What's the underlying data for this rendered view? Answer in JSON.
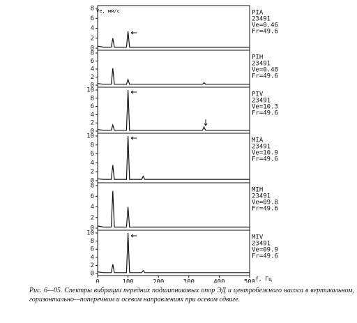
{
  "chart_data": [
    {
      "type": "line",
      "annotations": [
        "PIA",
        "23491",
        "Ve=0.46",
        "Fr=49.6"
      ],
      "ylabel": "Ve, мм/с",
      "x": [
        0,
        20,
        45,
        50,
        55,
        95,
        100,
        105,
        200,
        300,
        400,
        500
      ],
      "values": [
        0.4,
        0.2,
        0.2,
        2.0,
        0.2,
        0.2,
        3.4,
        0.2,
        0.2,
        0.2,
        0.2,
        0.2
      ],
      "xlim": [
        0,
        500
      ],
      "ylim": [
        0,
        8
      ],
      "yticks": [
        0,
        2,
        4,
        6,
        8
      ],
      "color": "#111111"
    },
    {
      "type": "line",
      "annotations": [
        "PIH",
        "23491",
        "Ve=0.48",
        "Fr=49.6"
      ],
      "x": [
        0,
        20,
        45,
        50,
        55,
        95,
        100,
        105,
        200,
        345,
        350,
        355,
        500
      ],
      "values": [
        0.4,
        0.2,
        0.2,
        4.2,
        0.2,
        0.2,
        1.4,
        0.2,
        0.2,
        0.2,
        0.6,
        0.2,
        0.2
      ],
      "xlim": [
        0,
        500
      ],
      "ylim": [
        0,
        8
      ],
      "yticks": [
        0,
        2,
        4,
        6,
        8
      ],
      "color": "#111111"
    },
    {
      "type": "line",
      "annotations": [
        "PIV",
        "23491",
        "Ve=10.3",
        "Fr=49.6"
      ],
      "x": [
        0,
        20,
        45,
        50,
        55,
        95,
        100,
        105,
        200,
        345,
        350,
        355,
        500
      ],
      "values": [
        0.4,
        0.2,
        0.2,
        1.5,
        0.2,
        0.2,
        10,
        0.2,
        0.2,
        0.2,
        1.0,
        0.2,
        0.2
      ],
      "xlim": [
        0,
        500
      ],
      "ylim": [
        0,
        10
      ],
      "yticks": [
        0,
        2,
        4,
        6,
        8,
        10
      ],
      "color": "#111111"
    },
    {
      "type": "line",
      "annotations": [
        "MIA",
        "23491",
        "Ve=10.9",
        "Fr=49.6"
      ],
      "x": [
        0,
        20,
        45,
        50,
        55,
        95,
        100,
        105,
        145,
        150,
        155,
        300,
        500
      ],
      "values": [
        0.4,
        0.3,
        0.3,
        3.5,
        0.3,
        0.3,
        10,
        0.3,
        0.3,
        1.0,
        0.3,
        0.3,
        0.3
      ],
      "xlim": [
        0,
        500
      ],
      "ylim": [
        0,
        10
      ],
      "yticks": [
        0,
        2,
        4,
        6,
        8,
        10
      ],
      "color": "#111111"
    },
    {
      "type": "line",
      "annotations": [
        "MIH",
        "23491",
        "Ve=09.8",
        "Fr=49.6"
      ],
      "x": [
        0,
        20,
        45,
        50,
        55,
        95,
        100,
        105,
        200,
        300,
        400,
        500
      ],
      "values": [
        0.4,
        0.2,
        0.2,
        7.0,
        0.2,
        0.2,
        4.0,
        0.2,
        0.2,
        0.2,
        0.2,
        0.2
      ],
      "xlim": [
        0,
        500
      ],
      "ylim": [
        0,
        8
      ],
      "yticks": [
        0,
        2,
        4,
        6,
        8
      ],
      "color": "#111111"
    },
    {
      "type": "line",
      "annotations": [
        "MIV",
        "23491",
        "Ve=09.9",
        "Fr=49.6"
      ],
      "x": [
        0,
        20,
        45,
        50,
        55,
        95,
        100,
        105,
        145,
        150,
        155,
        300,
        500
      ],
      "values": [
        0.4,
        0.2,
        0.2,
        2.3,
        0.2,
        0.2,
        10,
        0.2,
        0.2,
        0.7,
        0.2,
        0.2,
        0.2
      ],
      "xlim": [
        0,
        500
      ],
      "ylim": [
        0,
        10
      ],
      "yticks": [
        0,
        2,
        4,
        6,
        8,
        10
      ],
      "color": "#111111",
      "xticks": [
        0,
        100,
        200,
        300,
        400,
        500
      ],
      "xlabel": "f, Гц"
    }
  ],
  "caption": "Рис. 6—05. Спектры вибрации передних подшипниковых опор ЭД и центробежного насоса в вертикальном, горизонтально—поперечном и осевом направлениях при осевом сдвиге."
}
